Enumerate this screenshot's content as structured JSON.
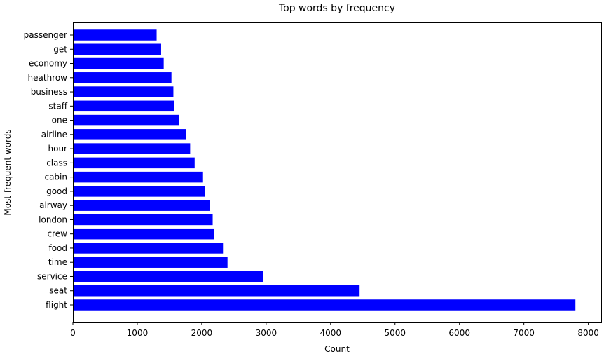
{
  "chart_data": {
    "type": "bar",
    "orientation": "horizontal",
    "title": "Top words by frequency",
    "xlabel": "Count",
    "ylabel": "Most frequent words",
    "categories": [
      "flight",
      "seat",
      "service",
      "time",
      "food",
      "crew",
      "london",
      "airway",
      "good",
      "cabin",
      "class",
      "hour",
      "airline",
      "one",
      "staff",
      "business",
      "heathrow",
      "economy",
      "get",
      "passenger"
    ],
    "values": [
      7800,
      4450,
      2950,
      2400,
      2330,
      2190,
      2170,
      2130,
      2050,
      2020,
      1890,
      1820,
      1760,
      1650,
      1570,
      1560,
      1530,
      1410,
      1370,
      1300
    ],
    "xlim": [
      0,
      8200
    ],
    "xticks": [
      0,
      1000,
      2000,
      3000,
      4000,
      5000,
      6000,
      7000,
      8000
    ],
    "bar_color": "#0000ff",
    "grid": false,
    "legend": "none"
  }
}
